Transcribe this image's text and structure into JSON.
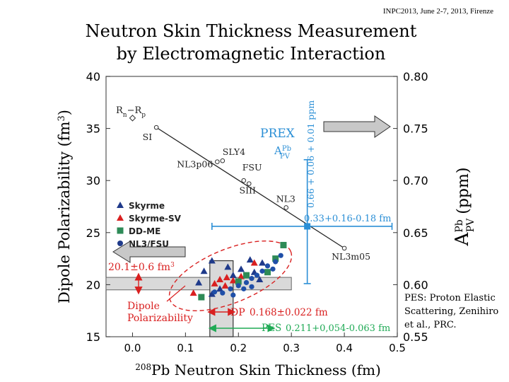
{
  "header": {
    "conference": "INPC2013, June 2-7, 2013, Firenze",
    "title_line1": "Neutron Skin Thickness Measurement",
    "title_line2": "by Electromagnetic Interaction"
  },
  "note": {
    "line1": "PES: Proton Elastic",
    "line2": "Scattering, Zenihiro",
    "line3": "et al., PRC."
  },
  "chart_data": {
    "type": "scatter",
    "xlabel_sup": "208",
    "xlabel": "Pb Neutron Skin Thickness (fm)",
    "ylabel": "Dipole Polarizability (fm",
    "ylabel_sup": "3",
    "ylabel_tail": ")",
    "y2label_main": "A",
    "y2label_sup": "Pb",
    "y2label_sub": "PV",
    "y2label_unit": "(ppm)",
    "xlim": [
      -0.05,
      0.5
    ],
    "ylim": [
      15,
      40
    ],
    "y2lim": [
      0.55,
      0.8
    ],
    "xticks": [
      "0.0",
      "0.1",
      "0.2",
      "0.3",
      "0.4",
      "0.5"
    ],
    "xtick_values": [
      0.0,
      0.1,
      0.2,
      0.3,
      0.4,
      0.5
    ],
    "yticks": [
      "15",
      "20",
      "25",
      "30",
      "35",
      "40"
    ],
    "ytick_values": [
      15,
      20,
      25,
      30,
      35,
      40
    ],
    "y2ticks": [
      "0.55",
      "0.60",
      "0.65",
      "0.70",
      "0.75",
      "0.80"
    ],
    "y2tick_values": [
      0.55,
      0.6,
      0.65,
      0.7,
      0.75,
      0.8
    ],
    "legend": [
      {
        "label": "Skyrme",
        "color": "#1f3a8a",
        "marker": "triangle"
      },
      {
        "label": "Skyrme-SV",
        "color": "#d92020",
        "marker": "triangle"
      },
      {
        "label": "DD-ME",
        "color": "#2e8b57",
        "marker": "square"
      },
      {
        "label": "NL3/FSU",
        "color": "#1f3a8a",
        "marker": "circle"
      }
    ],
    "rnrp_label": "R",
    "rnrp_sub1": "n",
    "rnrp_mid": "−R",
    "rnrp_sub2": "p",
    "rnrp_point": {
      "x": 0.0,
      "y": 36.0
    },
    "models": [
      {
        "name": "SI",
        "x": 0.045,
        "y": 35.1
      },
      {
        "name": "SLY4",
        "x": 0.17,
        "y": 31.9
      },
      {
        "name": "NL3p06",
        "x": 0.16,
        "y": 31.8
      },
      {
        "name": "FSU",
        "x": 0.21,
        "y": 30.0
      },
      {
        "name": "SIII",
        "x": 0.22,
        "y": 29.7
      },
      {
        "name": "NL3",
        "x": 0.29,
        "y": 27.4
      },
      {
        "name": "NL3m05",
        "x": 0.4,
        "y": 23.5
      }
    ],
    "correlation_line": {
      "x": [
        0.045,
        0.4
      ],
      "y": [
        35.1,
        23.5
      ]
    },
    "prex": {
      "title": "PREX",
      "label_main": "A",
      "label_sup": "Pb",
      "label_sub": "PV",
      "asym_text": "0.66 + 0.06 + 0.01 ppm",
      "x": 0.33,
      "x_err_plus": 0.16,
      "x_err_minus": 0.18,
      "apv": 0.656,
      "apv_err_low": 0.601,
      "apv_err_high": 0.72,
      "value_text": "0.33+0.16-0.18 fm"
    },
    "dipole": {
      "value": 20.1,
      "err": 0.6,
      "value_text_main": "20.1±0.6 fm",
      "value_text_sup": "3",
      "label_line1": "Dipole",
      "label_line2": "Polarizability",
      "band": [
        19.5,
        20.7
      ],
      "skin_label": "DP",
      "skin_value_text": "0.168±0.022 fm",
      "skin_range": [
        0.146,
        0.19
      ]
    },
    "pes": {
      "label": "PES",
      "value_text": "0.211+0,054-0.063 fm",
      "range": [
        0.148,
        0.265
      ]
    },
    "skyrme": [
      {
        "x": 0.125,
        "y": 20.2
      },
      {
        "x": 0.135,
        "y": 21.3
      },
      {
        "x": 0.15,
        "y": 22.3
      },
      {
        "x": 0.165,
        "y": 19.6
      },
      {
        "x": 0.18,
        "y": 21.7
      },
      {
        "x": 0.19,
        "y": 20.9
      },
      {
        "x": 0.205,
        "y": 21.5
      },
      {
        "x": 0.222,
        "y": 22.4
      },
      {
        "x": 0.23,
        "y": 21.2
      },
      {
        "x": 0.24,
        "y": 20.5
      },
      {
        "x": 0.15,
        "y": 19.1
      },
      {
        "x": 0.245,
        "y": 22.1
      }
    ],
    "skyrme_sv": [
      {
        "x": 0.115,
        "y": 19.2
      },
      {
        "x": 0.155,
        "y": 20.1
      },
      {
        "x": 0.165,
        "y": 20.5
      },
      {
        "x": 0.178,
        "y": 20.7
      },
      {
        "x": 0.19,
        "y": 20.4
      },
      {
        "x": 0.205,
        "y": 20.8
      },
      {
        "x": 0.175,
        "y": 19.9
      },
      {
        "x": 0.23,
        "y": 22.1
      }
    ],
    "dd_me": [
      {
        "x": 0.13,
        "y": 18.8
      },
      {
        "x": 0.2,
        "y": 20.3
      },
      {
        "x": 0.215,
        "y": 20.9
      },
      {
        "x": 0.255,
        "y": 21.2
      },
      {
        "x": 0.27,
        "y": 22.5
      },
      {
        "x": 0.285,
        "y": 23.8
      }
    ],
    "nl3_fsu": [
      {
        "x": 0.155,
        "y": 19.3
      },
      {
        "x": 0.17,
        "y": 19.2
      },
      {
        "x": 0.185,
        "y": 19.6
      },
      {
        "x": 0.2,
        "y": 19.9
      },
      {
        "x": 0.215,
        "y": 20.2
      },
      {
        "x": 0.225,
        "y": 20.6
      },
      {
        "x": 0.235,
        "y": 20.9
      },
      {
        "x": 0.245,
        "y": 21.3
      },
      {
        "x": 0.255,
        "y": 21.8
      },
      {
        "x": 0.27,
        "y": 22.2
      },
      {
        "x": 0.28,
        "y": 22.8
      },
      {
        "x": 0.21,
        "y": 19.6
      },
      {
        "x": 0.19,
        "y": 19.0
      },
      {
        "x": 0.225,
        "y": 19.8
      },
      {
        "x": 0.265,
        "y": 21.5
      }
    ]
  },
  "colors": {
    "prex": "#2b8fd6",
    "dipole": "#d92020",
    "pes": "#1faa55",
    "skyrme": "#1f3a8a",
    "nl3": "#1f4fa8",
    "ddme": "#2e8b57",
    "grey_band": "#d9d9d9",
    "arrow_fill": "#c8c8c8"
  }
}
